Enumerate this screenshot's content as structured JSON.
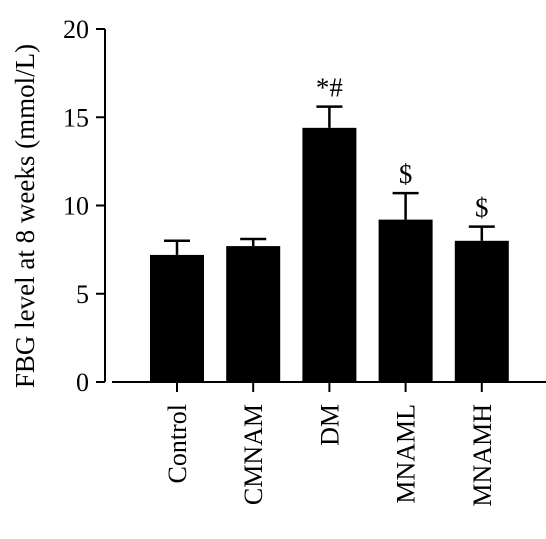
{
  "chart_data": {
    "type": "bar",
    "title": "",
    "xlabel": "",
    "ylabel": "FBG level at 8 weeks (mmol/L)",
    "ylim": [
      0,
      20
    ],
    "yticks": [
      0,
      5,
      10,
      15,
      20
    ],
    "categories": [
      "Control",
      "CMNAM",
      "DM",
      "MNAML",
      "MNAMH"
    ],
    "values": [
      7.2,
      7.7,
      14.4,
      9.2,
      8.0
    ],
    "errors": [
      0.8,
      0.4,
      1.2,
      1.5,
      0.8
    ],
    "annotations": [
      "",
      "",
      "*#",
      "$",
      "$"
    ],
    "bar_color": "#000000",
    "grid": false
  }
}
